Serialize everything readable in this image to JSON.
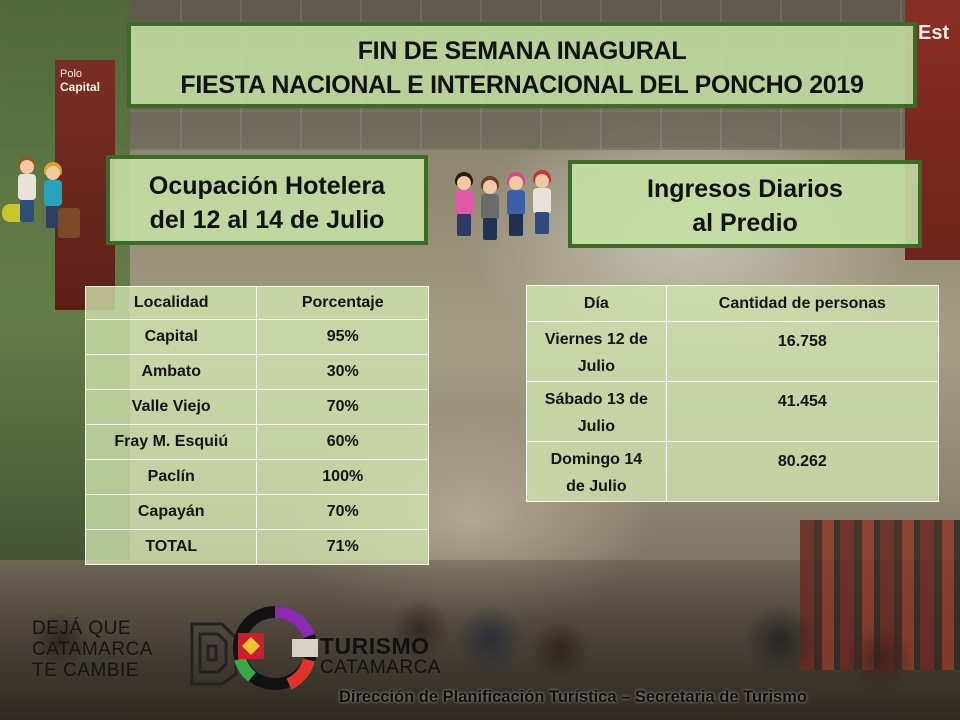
{
  "title": {
    "line1": "FIN DE SEMANA INAGURAL",
    "line2": "FIESTA NACIONAL  E INTERNACIONAL DEL PONCHO 2019"
  },
  "hotel_section": {
    "header_line1": "Ocupación Hotelera",
    "header_line2": "del 12 al 14 de Julio",
    "columns": [
      "Localidad",
      "Porcentaje"
    ],
    "rows": [
      {
        "localidad": "Capital",
        "porcentaje": "95%"
      },
      {
        "localidad": "Ambato",
        "porcentaje": "30%"
      },
      {
        "localidad": "Valle Viejo",
        "porcentaje": "70%"
      },
      {
        "localidad": "Fray M. Esquiú",
        "porcentaje": "60%"
      },
      {
        "localidad": "Paclín",
        "porcentaje": "100%"
      },
      {
        "localidad": "Capayán",
        "porcentaje": "70%"
      },
      {
        "localidad": "TOTAL",
        "porcentaje": "71%"
      }
    ]
  },
  "income_section": {
    "header_line1": "Ingresos Diarios",
    "header_line2": "al Predio",
    "columns": [
      "Día",
      "Cantidad de personas"
    ],
    "rows": [
      {
        "dia_line1": "Viernes 12 de",
        "dia_line2": "Julio",
        "cantidad": "16.758"
      },
      {
        "dia_line1": "Sábado 13 de",
        "dia_line2": "Julio",
        "cantidad": "41.454"
      },
      {
        "dia_line1": "Domingo 14",
        "dia_line2": "de Julio",
        "cantidad": "80.262"
      }
    ]
  },
  "background_signs": {
    "left_small": "Polo",
    "left_big": "Capital",
    "right": "Est"
  },
  "logos": {
    "deja": {
      "line1": "DEJÁ QUE",
      "line2": "CATAMARCA",
      "line3": "TE CAMBIE"
    },
    "turismo": {
      "name": "TURISMO",
      "sub": "CATAMARCA"
    }
  },
  "footer": "Dirección de Planificación Turística – Secretaria de Turismo",
  "colors": {
    "box_fill": "#c5dfa4",
    "box_border": "#3e6a28",
    "table_fill": "#d2e6af"
  }
}
